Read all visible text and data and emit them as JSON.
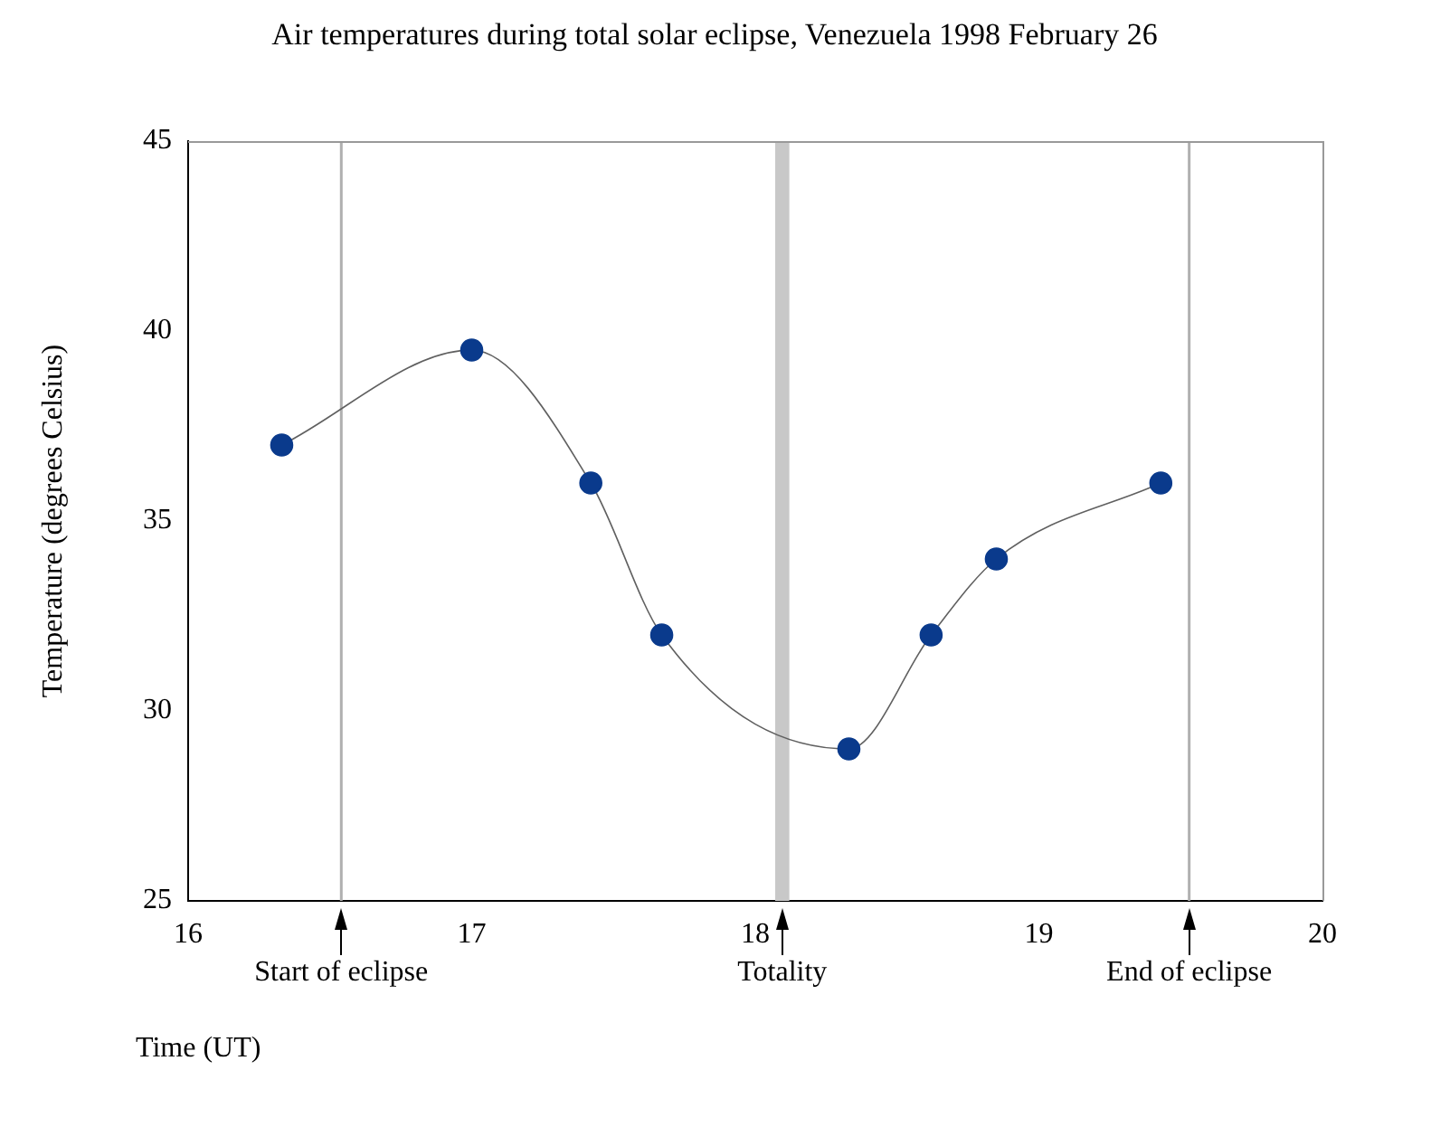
{
  "chart_data": {
    "type": "line",
    "title": "Air temperatures during total solar eclipse, Venezuela 1998 February 26",
    "xlabel": "Time (UT)",
    "ylabel": "Temperature (degrees Celsius)",
    "x": [
      16.33,
      17.0,
      17.42,
      17.67,
      18.33,
      18.62,
      18.85,
      19.43
    ],
    "series": [
      {
        "color": "#0a3a8c",
        "values": [
          37,
          39.5,
          36,
          32,
          29,
          32,
          34,
          36
        ]
      }
    ],
    "xlim": [
      16,
      20
    ],
    "xticks": [
      16,
      17,
      18,
      19,
      20
    ],
    "ylim": [
      25,
      45
    ],
    "yticks": [
      25,
      30,
      35,
      40,
      45
    ],
    "grid": false,
    "legend": false,
    "marker": "circle",
    "line_style": "solid",
    "ref_lines": [
      {
        "axis": "x",
        "value": 16.54,
        "label": "Start of eclipse",
        "color": "#b0b0b0"
      },
      {
        "axis": "x",
        "value": 19.53,
        "label": "End of eclipse",
        "color": "#b0b0b0"
      }
    ],
    "bands": [
      {
        "axis": "x",
        "from": 18.07,
        "to": 18.12,
        "label": "Totality",
        "color": "#c8c8c8"
      }
    ]
  }
}
